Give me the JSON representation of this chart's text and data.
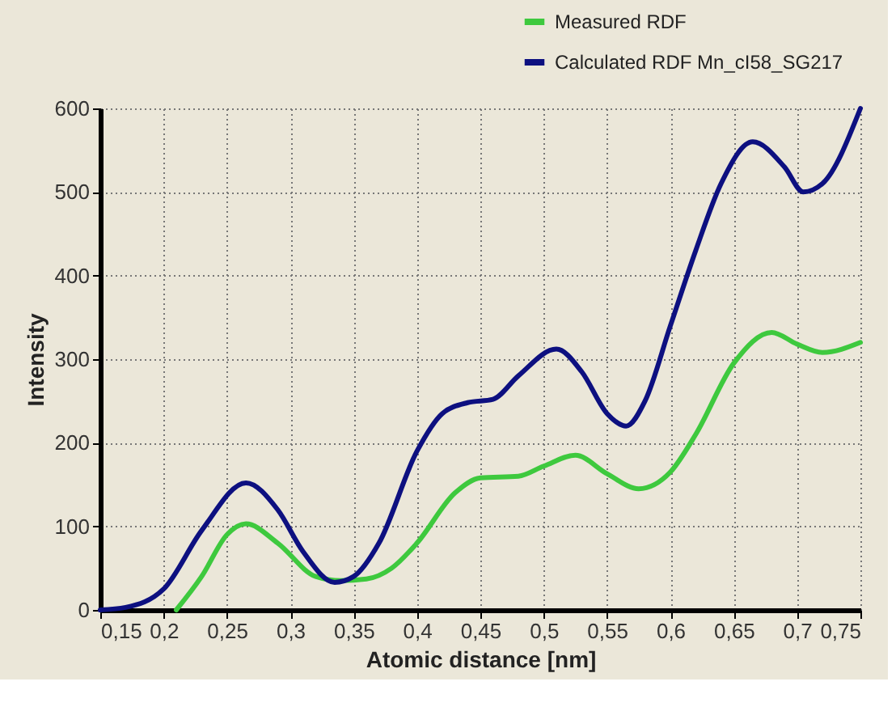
{
  "chart_data": {
    "type": "line",
    "xlabel": "Atomic distance [nm]",
    "ylabel": "Intensity",
    "series": [
      {
        "name": "Measured  RDF",
        "color": "#3ec93e",
        "x": [
          0.21,
          0.23,
          0.25,
          0.265,
          0.29,
          0.32,
          0.34,
          0.36,
          0.38,
          0.4,
          0.43,
          0.45,
          0.48,
          0.5,
          0.525,
          0.55,
          0.575,
          0.6,
          0.62,
          0.65,
          0.68,
          0.7,
          0.72,
          0.75
        ],
        "values": [
          0,
          40,
          90,
          103,
          80,
          40,
          35,
          37,
          50,
          80,
          140,
          158,
          160,
          172,
          185,
          163,
          145,
          165,
          210,
          295,
          332,
          318,
          308,
          320
        ]
      },
      {
        "name": "Calculated  RDF  Mn_cI58_SG217",
        "color": "#0d1080",
        "x": [
          0.15,
          0.17,
          0.2,
          0.23,
          0.265,
          0.29,
          0.31,
          0.335,
          0.35,
          0.37,
          0.4,
          0.42,
          0.44,
          0.46,
          0.48,
          0.51,
          0.53,
          0.55,
          0.565,
          0.58,
          0.6,
          0.62,
          0.64,
          0.665,
          0.69,
          0.705,
          0.72,
          0.75
        ],
        "values": [
          0,
          3,
          25,
          95,
          152,
          120,
          70,
          33,
          40,
          80,
          190,
          235,
          248,
          252,
          280,
          312,
          285,
          235,
          220,
          250,
          340,
          430,
          510,
          560,
          530,
          500,
          510,
          600
        ]
      }
    ],
    "xlim": [
      0.15,
      0.75
    ],
    "xticks": [
      {
        "value": 0.15,
        "label": "0,15"
      },
      {
        "value": 0.2,
        "label": "0,2"
      },
      {
        "value": 0.25,
        "label": "0,25"
      },
      {
        "value": 0.3,
        "label": "0,3"
      },
      {
        "value": 0.35,
        "label": "0,35"
      },
      {
        "value": 0.4,
        "label": "0,4"
      },
      {
        "value": 0.45,
        "label": "0,45"
      },
      {
        "value": 0.5,
        "label": "0,5"
      },
      {
        "value": 0.55,
        "label": "0,55"
      },
      {
        "value": 0.6,
        "label": "0,6"
      },
      {
        "value": 0.65,
        "label": "0,65"
      },
      {
        "value": 0.7,
        "label": "0,7"
      },
      {
        "value": 0.75,
        "label": "0,75"
      }
    ],
    "ylim": [
      0,
      600
    ],
    "yticks": [
      0,
      100,
      200,
      300,
      400,
      500,
      600
    ],
    "grid": true,
    "legend": "top right",
    "marker": "none",
    "line_style": "solid"
  }
}
